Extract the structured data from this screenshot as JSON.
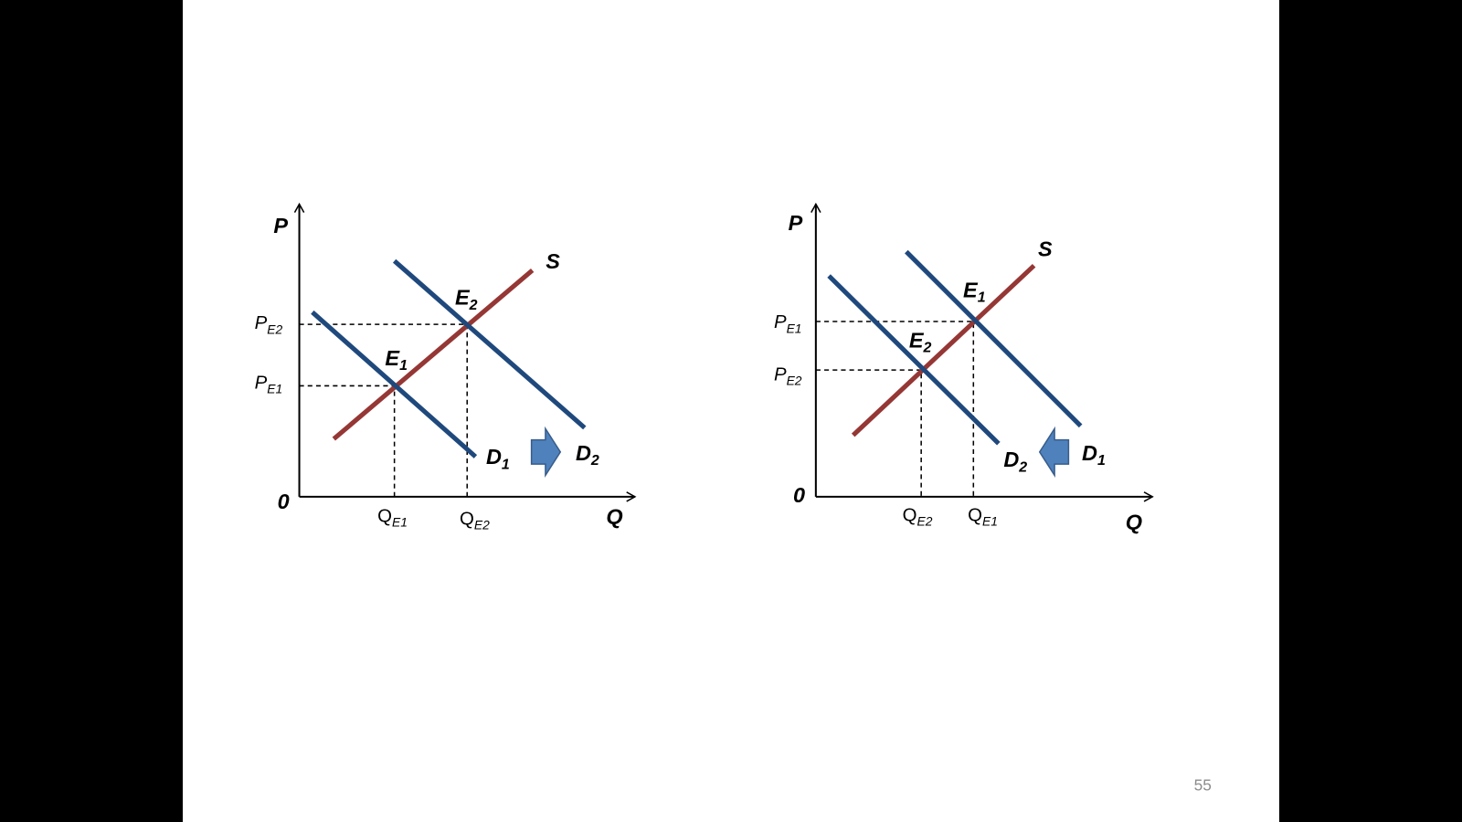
{
  "slide": {
    "diagrams": [
      {
        "y_axis": "P",
        "x_axis": "Q",
        "origin": "0",
        "supply": "S",
        "demand_1": {
          "text": "D",
          "sub": "1"
        },
        "demand_2": {
          "text": "D",
          "sub": "2"
        },
        "equilibrium_1": {
          "text": "E",
          "sub": "1"
        },
        "equilibrium_2": {
          "text": "E",
          "sub": "2"
        },
        "price_1": {
          "text": "P",
          "sub": "E1"
        },
        "price_2": {
          "text": "P",
          "sub": "E2"
        },
        "quantity_1": {
          "text": "Q",
          "sub": "E1"
        },
        "quantity_2": {
          "text": "Q",
          "sub": "E2"
        }
      },
      {
        "y_axis": "P",
        "x_axis": "Q",
        "origin": "0",
        "supply": "S",
        "demand_1": {
          "text": "D",
          "sub": "1"
        },
        "demand_2": {
          "text": "D",
          "sub": "2"
        },
        "equilibrium_1": {
          "text": "E",
          "sub": "1"
        },
        "equilibrium_2": {
          "text": "E",
          "sub": "2"
        },
        "price_1": {
          "text": "P",
          "sub": "E1"
        },
        "price_2": {
          "text": "P",
          "sub": "E2"
        },
        "quantity_1": {
          "text": "Q",
          "sub": "E1"
        },
        "quantity_2": {
          "text": "Q",
          "sub": "E2"
        }
      }
    ],
    "page_number": "55"
  }
}
